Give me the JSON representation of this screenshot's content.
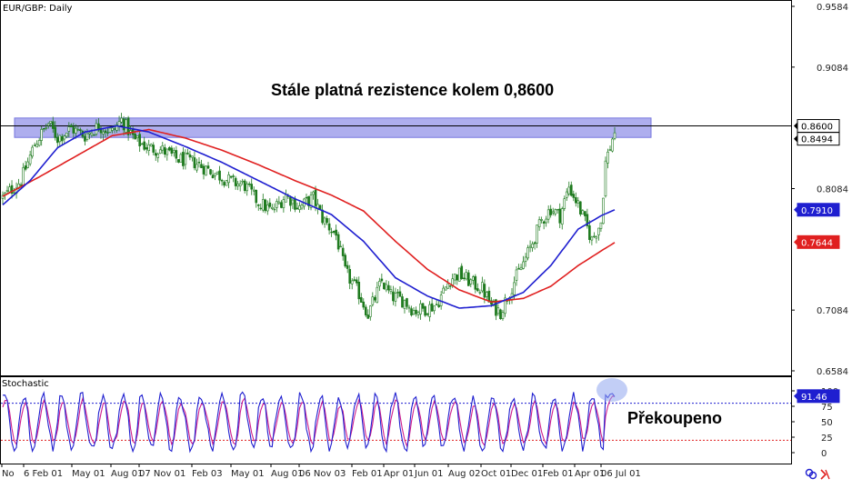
{
  "chart_data": [
    {
      "type": "candlestick",
      "title": "EUR/GBP: Daily",
      "annotation": "Stále platná rezistence kolem 0,8600",
      "ylim": [
        0.6584,
        0.9584
      ],
      "y_ticks": [
        "0.9584",
        "0.9084",
        "0.8084",
        "0.7084",
        "0.6584"
      ],
      "x_tick_labels": [
        "No",
        "6 Feb 01",
        "May 01",
        "Aug 01",
        "07 Nov 01",
        "Feb 03",
        "May 01",
        "Aug 01",
        "06 Nov 03",
        "Feb 01",
        "Apr 01",
        "Jun 01",
        "Aug 02",
        "Oct 01",
        "Dec 01",
        "Feb 01",
        "Apr 01",
        "06 Jul 01"
      ],
      "resistance_zone": [
        0.8505,
        0.8665
      ],
      "resistance_line": 0.86,
      "price_tags": [
        {
          "label": "0.8600",
          "value": 0.86,
          "bg": "#ffffff",
          "fg": "#000000"
        },
        {
          "label": "0.8494",
          "value": 0.8494,
          "bg": "#ffffff",
          "fg": "#000000"
        },
        {
          "label": "0.7910",
          "value": 0.791,
          "bg": "#1f1fd0",
          "fg": "#ffffff"
        },
        {
          "label": "0.7644",
          "value": 0.7644,
          "bg": "#e02020",
          "fg": "#ffffff"
        }
      ],
      "close_path": [
        [
          0,
          0.801
        ],
        [
          8,
          0.815
        ],
        [
          14,
          0.845
        ],
        [
          20,
          0.862
        ],
        [
          24,
          0.85
        ],
        [
          30,
          0.858
        ],
        [
          36,
          0.852
        ],
        [
          42,
          0.86
        ],
        [
          48,
          0.855
        ],
        [
          52,
          0.865
        ],
        [
          58,
          0.848
        ],
        [
          64,
          0.842
        ],
        [
          70,
          0.84
        ],
        [
          76,
          0.833
        ],
        [
          84,
          0.83
        ],
        [
          92,
          0.822
        ],
        [
          100,
          0.814
        ],
        [
          106,
          0.811
        ],
        [
          112,
          0.797
        ],
        [
          118,
          0.79
        ],
        [
          124,
          0.803
        ],
        [
          130,
          0.793
        ],
        [
          136,
          0.801
        ],
        [
          140,
          0.784
        ],
        [
          146,
          0.77
        ],
        [
          150,
          0.74
        ],
        [
          156,
          0.722
        ],
        [
          160,
          0.705
        ],
        [
          166,
          0.732
        ],
        [
          170,
          0.72
        ],
        [
          176,
          0.716
        ],
        [
          180,
          0.708
        ],
        [
          186,
          0.71
        ],
        [
          190,
          0.713
        ],
        [
          196,
          0.734
        ],
        [
          200,
          0.738
        ],
        [
          206,
          0.73
        ],
        [
          210,
          0.726
        ],
        [
          214,
          0.712
        ],
        [
          218,
          0.707
        ],
        [
          224,
          0.732
        ],
        [
          230,
          0.755
        ],
        [
          236,
          0.782
        ],
        [
          240,
          0.792
        ],
        [
          244,
          0.786
        ],
        [
          248,
          0.81
        ],
        [
          252,
          0.795
        ],
        [
          256,
          0.776
        ],
        [
          258,
          0.766
        ],
        [
          262,
          0.781
        ],
        [
          264,
          0.83
        ],
        [
          268,
          0.856
        ]
      ],
      "ma_blue": [
        [
          0,
          0.795
        ],
        [
          12,
          0.815
        ],
        [
          24,
          0.842
        ],
        [
          36,
          0.855
        ],
        [
          50,
          0.86
        ],
        [
          64,
          0.855
        ],
        [
          80,
          0.843
        ],
        [
          96,
          0.83
        ],
        [
          112,
          0.815
        ],
        [
          128,
          0.8
        ],
        [
          144,
          0.787
        ],
        [
          158,
          0.765
        ],
        [
          172,
          0.735
        ],
        [
          186,
          0.72
        ],
        [
          200,
          0.71
        ],
        [
          214,
          0.712
        ],
        [
          228,
          0.723
        ],
        [
          240,
          0.745
        ],
        [
          252,
          0.775
        ],
        [
          262,
          0.786
        ],
        [
          268,
          0.791
        ]
      ],
      "ma_red": [
        [
          0,
          0.802
        ],
        [
          16,
          0.818
        ],
        [
          32,
          0.835
        ],
        [
          48,
          0.852
        ],
        [
          64,
          0.857
        ],
        [
          80,
          0.85
        ],
        [
          96,
          0.84
        ],
        [
          112,
          0.828
        ],
        [
          128,
          0.815
        ],
        [
          144,
          0.803
        ],
        [
          158,
          0.79
        ],
        [
          172,
          0.765
        ],
        [
          186,
          0.742
        ],
        [
          200,
          0.725
        ],
        [
          214,
          0.715
        ],
        [
          228,
          0.718
        ],
        [
          240,
          0.728
        ],
        [
          252,
          0.745
        ],
        [
          262,
          0.757
        ],
        [
          268,
          0.764
        ]
      ],
      "n_bars": 269
    },
    {
      "type": "line",
      "title": "Stochastic",
      "annotation": "Překoupeno",
      "ylim": [
        0,
        100
      ],
      "y_ticks": [
        "100",
        "75",
        "50",
        "25",
        "0"
      ],
      "overbought_level": 80,
      "oversold_level": 20,
      "current_tag": {
        "label": "91.46",
        "value": 91.46,
        "bg": "#1f1fd0",
        "fg": "#ffffff"
      }
    }
  ],
  "colors": {
    "zone": "#aaaaee",
    "zone_border": "#7070dd",
    "candle": "#1e7a1e",
    "blue": "#1f1fd0",
    "red": "#e02020",
    "stoch_k": "#1f1fd0",
    "stoch_d": "#d01e8c",
    "circle": "#8fa5ee"
  }
}
